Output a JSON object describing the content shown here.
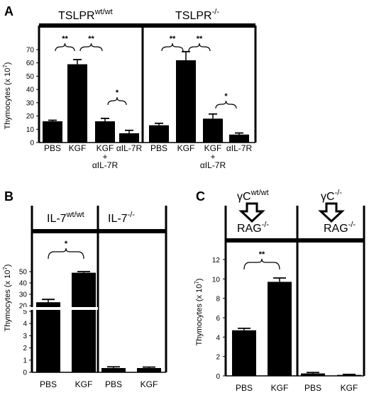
{
  "chart_data": [
    {
      "panel": "A",
      "type": "bar",
      "groups": [
        "TSLPRwt/wt",
        "TSLPR-/-"
      ],
      "categories": [
        "PBS",
        "KGF",
        "KGF\n+\nαIL-7R",
        "αIL-7R"
      ],
      "series": [
        {
          "group": "TSLPRwt/wt",
          "values": [
            16,
            59,
            16,
            7
          ],
          "errors": [
            0.8,
            3.5,
            2.2,
            2.2
          ]
        },
        {
          "group": "TSLPR-/-",
          "values": [
            13,
            62,
            18,
            6
          ],
          "errors": [
            1.5,
            6.5,
            3.5,
            1.2
          ]
        }
      ],
      "significance": [
        {
          "group": 0,
          "from": 0,
          "to": 1,
          "label": "**"
        },
        {
          "group": 0,
          "from": 1,
          "to": 2,
          "label": "**"
        },
        {
          "group": 0,
          "from": 2,
          "to": 3,
          "label": "*"
        },
        {
          "group": 1,
          "from": 0,
          "to": 1,
          "label": "**"
        },
        {
          "group": 1,
          "from": 1,
          "to": 2,
          "label": "**"
        },
        {
          "group": 1,
          "from": 2,
          "to": 3,
          "label": "*"
        }
      ],
      "ylabel": "Thymocytes (x 10",
      "ylabel_exp": "7",
      "ylim": [
        0,
        70
      ],
      "yticks": [
        0,
        10,
        20,
        30,
        40,
        50,
        60,
        70
      ]
    },
    {
      "panel": "B",
      "type": "bar",
      "axis_break": true,
      "groups": [
        "IL-7wt/wt",
        "IL-7-/-"
      ],
      "categories": [
        "PBS",
        "KGF"
      ],
      "series": [
        {
          "group": "IL-7wt/wt",
          "values": [
            23,
            49
          ],
          "errors": [
            2.5,
            1
          ]
        },
        {
          "group": "IL-7-/-",
          "values": [
            0.35,
            0.35
          ],
          "errors": [
            0.1,
            0.08
          ]
        }
      ],
      "significance": [
        {
          "group": 0,
          "from": 0,
          "to": 1,
          "label": "*"
        }
      ],
      "ylabel": "Thymocytes (x 10",
      "ylabel_exp": "7",
      "yticks": [
        0,
        1,
        2,
        3,
        4,
        5,
        20,
        30,
        40,
        50
      ]
    },
    {
      "panel": "C",
      "type": "bar",
      "groups": [
        "γCwt/wt RAG-/-",
        "γC-/- RAG-/-"
      ],
      "categories": [
        "PBS",
        "KGF"
      ],
      "series": [
        {
          "group": "γCwt/wt RAG-/-",
          "values": [
            4.7,
            9.7
          ],
          "errors": [
            0.2,
            0.4
          ]
        },
        {
          "group": "γC-/- RAG-/-",
          "values": [
            0.25,
            0.1
          ],
          "errors": [
            0.1,
            0.05
          ]
        }
      ],
      "significance": [
        {
          "group": 0,
          "from": 0,
          "to": 1,
          "label": "**"
        }
      ],
      "ylabel": "Thymocytes (x 10",
      "ylabel_exp": "7",
      "ylim": [
        0,
        12
      ],
      "yticks": [
        0,
        2,
        4,
        6,
        8,
        10,
        12
      ]
    }
  ],
  "labels": {
    "panel_a": "A",
    "panel_b": "B",
    "panel_c": "C",
    "a_left_base": "TSLPR",
    "a_left_sup": "wt/wt",
    "a_right_base": "TSLPR",
    "a_right_sup": "-/-",
    "b_left_base": "IL-7",
    "b_left_sup": "wt/wt",
    "b_right_base": "IL-7",
    "b_right_sup": "-/-",
    "c_left_gc_base": "γC",
    "c_left_gc_sup": "wt/wt",
    "c_left_rag_base": "RAG",
    "c_left_rag_sup": "-/-",
    "c_right_gc_base": "γC",
    "c_right_gc_sup": "-/-",
    "c_right_rag_base": "RAG",
    "c_right_rag_sup": "-/-"
  }
}
